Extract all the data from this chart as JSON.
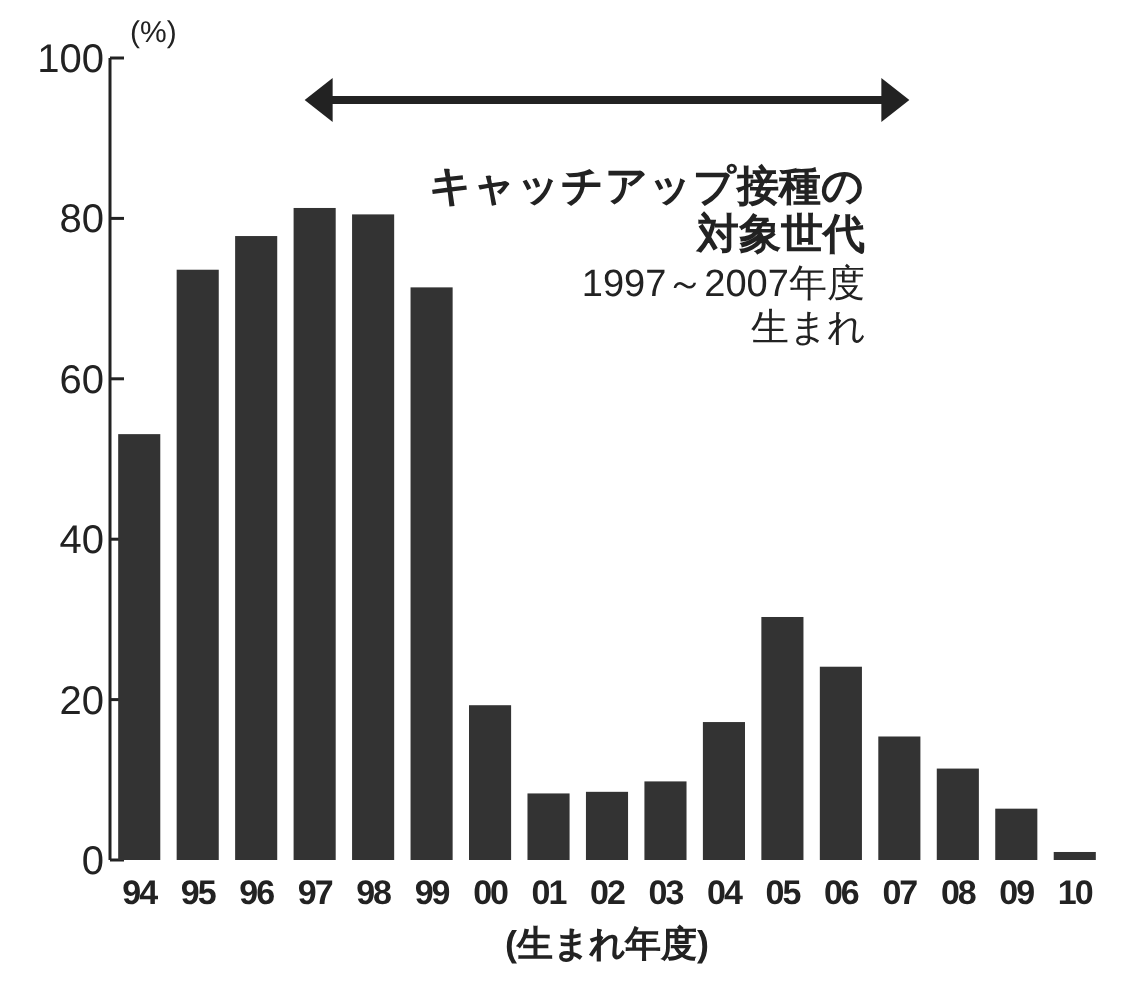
{
  "chart_data": {
    "type": "bar",
    "ylabel": "(%)",
    "xlabel": "(生まれ年度)",
    "categories": [
      "94",
      "95",
      "96",
      "97",
      "98",
      "99",
      "00",
      "01",
      "02",
      "03",
      "04",
      "05",
      "06",
      "07",
      "08",
      "09",
      "10"
    ],
    "values": [
      53.1,
      73.6,
      77.8,
      81.3,
      80.5,
      71.4,
      19.3,
      8.3,
      8.5,
      9.8,
      17.2,
      30.3,
      24.1,
      15.4,
      11.4,
      6.4,
      1.0
    ],
    "color": "#333333",
    "ylim": [
      0,
      100
    ],
    "yticks": [
      0,
      20,
      40,
      60,
      80,
      100
    ],
    "grid": false,
    "annotations": [
      "キャッチアップ接種の",
      "対象世代",
      "1997～2007年度",
      "生まれ"
    ]
  }
}
